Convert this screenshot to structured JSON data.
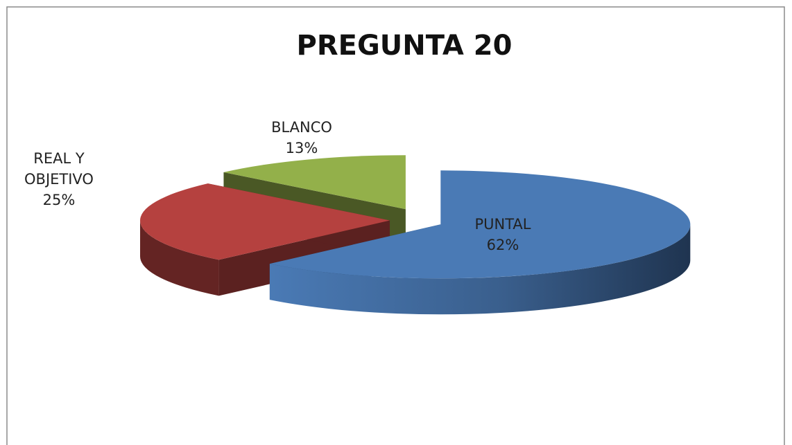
{
  "chart_data": {
    "type": "pie",
    "title": "PREGUNTA 20",
    "categories": [
      "PUNTAL",
      "REAL Y OBJETIVO",
      "BLANCO"
    ],
    "values": [
      62,
      25,
      13
    ],
    "value_labels": [
      "62%",
      "25%",
      "13%"
    ],
    "colors": [
      "#4a7ab5",
      "#b5413f",
      "#93b04a"
    ]
  }
}
